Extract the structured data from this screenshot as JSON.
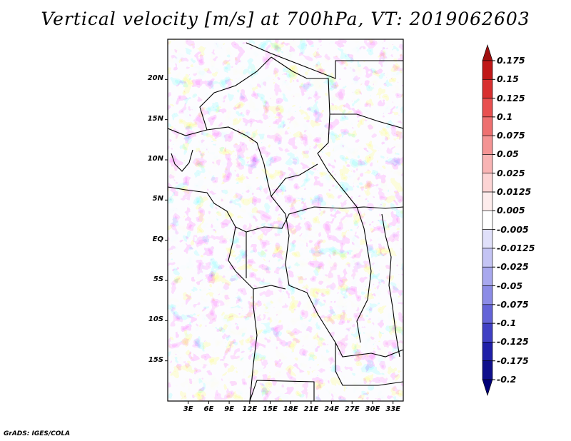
{
  "title": "Vertical velocity [m/s] at 700hPa, VT: 2019062603",
  "credit": "GrADS: IGES/COLA",
  "map": {
    "lon_range": [
      0,
      34.5
    ],
    "lat_range": [
      -20,
      25
    ],
    "lat_ticks": [
      {
        "value": 20,
        "label": "20N"
      },
      {
        "value": 15,
        "label": "15N"
      },
      {
        "value": 10,
        "label": "10N"
      },
      {
        "value": 5,
        "label": "5N"
      },
      {
        "value": 0,
        "label": "EQ"
      },
      {
        "value": -5,
        "label": "5S"
      },
      {
        "value": -10,
        "label": "10S"
      },
      {
        "value": -15,
        "label": "15S"
      }
    ],
    "lon_ticks": [
      {
        "value": 3,
        "label": "3E"
      },
      {
        "value": 6,
        "label": "6E"
      },
      {
        "value": 9,
        "label": "9E"
      },
      {
        "value": 12,
        "label": "12E"
      },
      {
        "value": 15,
        "label": "15E"
      },
      {
        "value": 18,
        "label": "18E"
      },
      {
        "value": 21,
        "label": "21E"
      },
      {
        "value": 24,
        "label": "24E"
      },
      {
        "value": 27,
        "label": "27E"
      },
      {
        "value": 30,
        "label": "30E"
      },
      {
        "value": 33,
        "label": "33E"
      }
    ],
    "field": "vertical velocity at 700hPa"
  },
  "colorbar": {
    "levels": [
      "0.175",
      "0.15",
      "0.125",
      "0.1",
      "0.075",
      "0.05",
      "0.025",
      "0.0125",
      "0.005",
      "-0.005",
      "-0.0125",
      "-0.025",
      "-0.05",
      "-0.075",
      "-0.1",
      "-0.125",
      "-0.175",
      "-0.2"
    ],
    "colors": [
      "#a01010",
      "#c01818",
      "#d83030",
      "#e85050",
      "#ee7070",
      "#f49494",
      "#f8b4b4",
      "#fcd4d4",
      "#fdecec",
      "#ffffff",
      "#e0e0fa",
      "#c4c4f4",
      "#a8a8ee",
      "#8c8ce6",
      "#6464d8",
      "#4040c4",
      "#2020a8",
      "#10108c",
      "#000078"
    ]
  }
}
